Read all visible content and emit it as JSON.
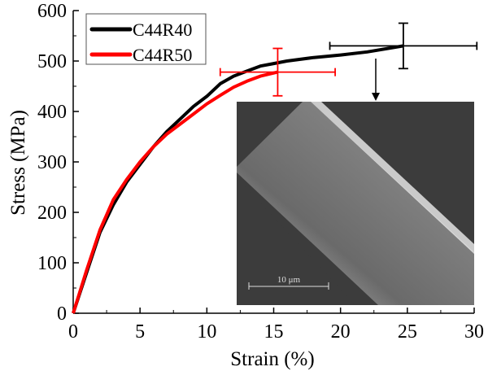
{
  "chart_data": {
    "type": "line",
    "xlabel": "Strain (%)",
    "ylabel": "Stress (MPa)",
    "xlim": [
      0,
      30
    ],
    "ylim": [
      0,
      600
    ],
    "xticks": [
      0,
      5,
      10,
      15,
      20,
      25,
      30
    ],
    "yticks": [
      0,
      100,
      200,
      300,
      400,
      500,
      600
    ],
    "legend_position": "top-left",
    "series": [
      {
        "name": "C44R40",
        "color": "#000000",
        "x": [
          0,
          1,
          2,
          3,
          4,
          5,
          6,
          7,
          8,
          9,
          10,
          11,
          12,
          13,
          14,
          15,
          16,
          18,
          20,
          22,
          24.7
        ],
        "y": [
          0,
          80,
          160,
          215,
          260,
          295,
          330,
          360,
          385,
          410,
          430,
          455,
          470,
          480,
          490,
          495,
          500,
          507,
          512,
          518,
          530
        ],
        "error_point": {
          "x": 24.7,
          "y": 530,
          "x_err": 5.5,
          "y_err": 45
        }
      },
      {
        "name": "C44R50",
        "color": "#ff0000",
        "x": [
          0,
          1,
          2,
          3,
          4,
          5,
          6,
          7,
          8,
          9,
          10,
          11,
          12,
          13,
          14,
          15.3
        ],
        "y": [
          0,
          85,
          165,
          225,
          265,
          300,
          330,
          355,
          375,
          395,
          415,
          432,
          448,
          460,
          470,
          478
        ],
        "error_point": {
          "x": 15.3,
          "y": 478,
          "x_err": 4.3,
          "y_err": 47
        }
      }
    ],
    "inset": {
      "scale_bar_label": "10 μm"
    }
  }
}
